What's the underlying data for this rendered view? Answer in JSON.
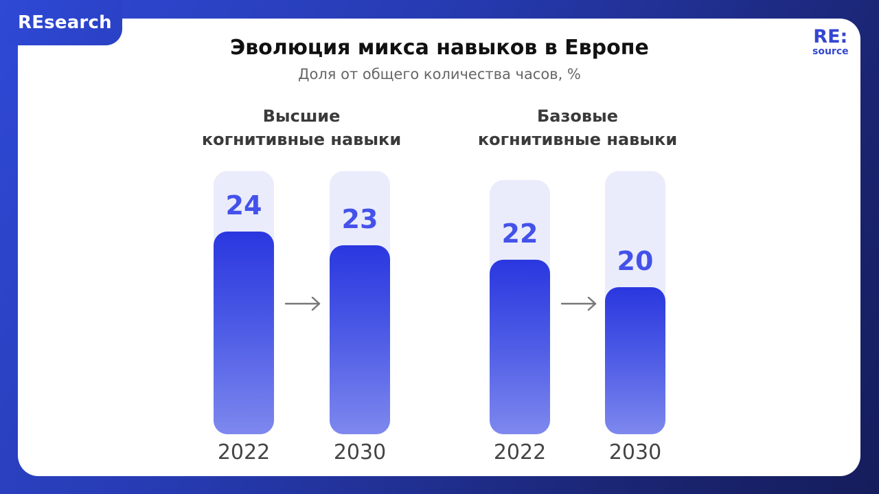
{
  "brand": "REsearch",
  "logo": {
    "main": "RE:",
    "sub": "source"
  },
  "title": "Эволюция микса навыков в Европе",
  "subtitle": "Доля от общего количества часов, %",
  "colors": {
    "bar": "#2a37df",
    "track": "#eaecfb",
    "value": "#4452ea"
  },
  "chart_data": {
    "type": "bar",
    "groups": [
      {
        "title_line1": "Высшие",
        "title_line2": "когнитивные навыки",
        "categories": [
          "2022",
          "2030"
        ],
        "values": [
          24,
          23
        ]
      },
      {
        "title_line1": "Базовые",
        "title_line2": "когнитивные навыки",
        "categories": [
          "2022",
          "2030"
        ],
        "values": [
          22,
          20
        ]
      }
    ],
    "value_labels": [
      [
        "24",
        "23"
      ],
      [
        "22",
        "20"
      ]
    ]
  }
}
